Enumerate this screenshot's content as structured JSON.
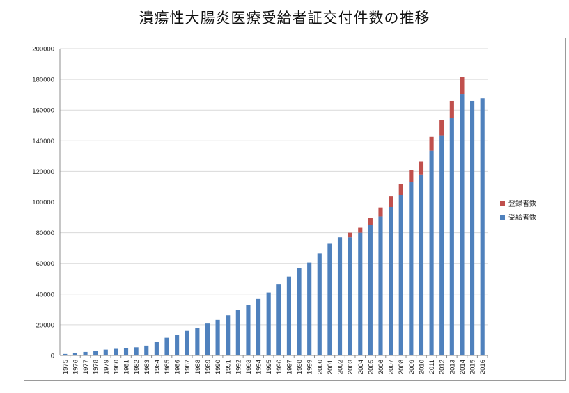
{
  "chart_data": {
    "type": "bar",
    "stacked": true,
    "title": "潰瘍性大腸炎医療受給者証交付件数の推移",
    "xlabel": "",
    "ylabel": "",
    "ylim": [
      0,
      200000
    ],
    "yticks": [
      0,
      20000,
      40000,
      60000,
      80000,
      100000,
      120000,
      140000,
      160000,
      180000,
      200000
    ],
    "grid": true,
    "legend_position": "right",
    "categories": [
      "1975",
      "1976",
      "1977",
      "1978",
      "1979",
      "1980",
      "1981",
      "1982",
      "1983",
      "1984",
      "1985",
      "1986",
      "1987",
      "1988",
      "1989",
      "1990",
      "1991",
      "1992",
      "1993",
      "1994",
      "1995",
      "1996",
      "1997",
      "1998",
      "1999",
      "2000",
      "2001",
      "2002",
      "2003",
      "2004",
      "2005",
      "2006",
      "2007",
      "2008",
      "2009",
      "2010",
      "2011",
      "2012",
      "2013",
      "2014",
      "2015",
      "2016"
    ],
    "series": [
      {
        "name": "受給者数",
        "color": "#4f81bd",
        "values": [
          965,
          1700,
          2300,
          3000,
          3800,
          4300,
          4800,
          5300,
          6400,
          9000,
          11500,
          13500,
          16000,
          18000,
          20800,
          23200,
          26200,
          29500,
          33000,
          36800,
          41000,
          46200,
          51400,
          57000,
          60500,
          66500,
          72800,
          77000,
          77000,
          80000,
          85000,
          90500,
          97000,
          104500,
          113000,
          118000,
          133500,
          143500,
          155000,
          170500,
          166000,
          167700
        ]
      },
      {
        "name": "登録者数",
        "color": "#c0504d",
        "values": [
          0,
          0,
          0,
          0,
          0,
          0,
          0,
          0,
          0,
          0,
          0,
          0,
          0,
          0,
          0,
          0,
          0,
          0,
          0,
          0,
          0,
          0,
          0,
          0,
          0,
          0,
          0,
          0,
          3000,
          3200,
          4500,
          5800,
          6800,
          7500,
          8000,
          8300,
          9000,
          10000,
          11000,
          11000,
          0,
          0
        ]
      }
    ]
  }
}
